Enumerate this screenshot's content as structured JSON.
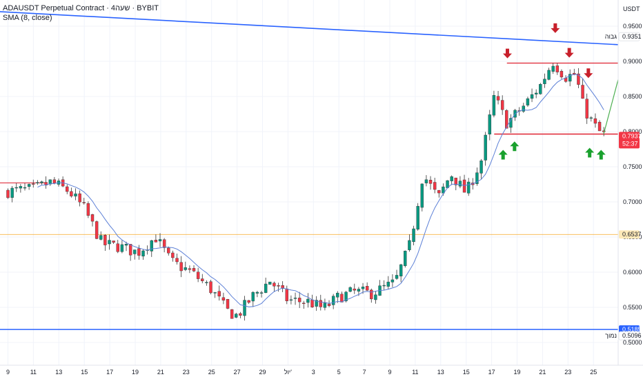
{
  "header": {
    "symbol_line": "ADAUSDT Perpetual Contract · 4שעה · BYBIT",
    "indicator_line": "SMA (8, close)"
  },
  "price_axis": {
    "unit": "USDT",
    "ticks": [
      "0.9500",
      "0.9000",
      "0.8500",
      "0.8000",
      "0.7500",
      "0.7000",
      "0.6500",
      "0.6000",
      "0.5500",
      "0.5000"
    ]
  },
  "time_axis": {
    "ticks": [
      "9",
      "11",
      "13",
      "15",
      "17",
      "19",
      "21",
      "23",
      "25",
      "27",
      "29",
      "יול'",
      "3",
      "5",
      "7",
      "9",
      "11",
      "13",
      "15",
      "17",
      "19",
      "21",
      "23",
      "25"
    ]
  },
  "price_labels": [
    {
      "name": "high",
      "prefix": "גבוה",
      "value": "0.9351",
      "price": 0.9351,
      "style": "outline"
    },
    {
      "name": "current",
      "value": "0.7937",
      "countdown": "52:37",
      "price": 0.7937,
      "style": "red"
    },
    {
      "name": "level",
      "value": "0.6537",
      "price": 0.6537,
      "style": "orange"
    },
    {
      "name": "support",
      "value": "0.5185",
      "price": 0.5185,
      "style": "blue"
    },
    {
      "name": "low",
      "prefix": "נמוך",
      "value": "0.5096",
      "price": 0.5096,
      "style": "outline"
    }
  ],
  "colors": {
    "up": "#089981",
    "down": "#f23645",
    "sma": "#5b7fd6",
    "trendline": "#2962ff",
    "resistance": "#e0303f",
    "level_orange": "#f5a623",
    "arrow_down": "#c8202b",
    "arrow_up": "#1aa12e",
    "projection": "#4caf50"
  },
  "chart_data": {
    "type": "candlestick",
    "symbol": "ADAUSDT Perpetual Contract",
    "interval": "4H",
    "exchange": "BYBIT",
    "indicator": "SMA (8, close)",
    "y_range": [
      0.495,
      0.975
    ],
    "x_range_index": [
      0,
      24
    ],
    "price_path": [
      [
        0,
        0.715
      ],
      [
        1,
        0.718
      ],
      [
        1.7,
        0.728
      ],
      [
        2.4,
        0.715
      ],
      [
        3.0,
        0.69
      ],
      [
        3.7,
        0.64
      ],
      [
        4.3,
        0.637
      ],
      [
        5.1,
        0.628
      ],
      [
        5.8,
        0.65
      ],
      [
        6.4,
        0.615
      ],
      [
        7.2,
        0.6
      ],
      [
        8.0,
        0.575
      ],
      [
        8.6,
        0.545
      ],
      [
        9.0,
        0.538
      ],
      [
        9.6,
        0.565
      ],
      [
        10.3,
        0.588
      ],
      [
        11.0,
        0.56
      ],
      [
        11.8,
        0.558
      ],
      [
        12.4,
        0.548
      ],
      [
        13.0,
        0.565
      ],
      [
        13.6,
        0.572
      ],
      [
        14.3,
        0.57
      ],
      [
        15.2,
        0.585
      ],
      [
        15.8,
        0.64
      ],
      [
        16.3,
        0.74
      ],
      [
        16.9,
        0.705
      ],
      [
        17.4,
        0.74
      ],
      [
        18.0,
        0.712
      ],
      [
        18.6,
        0.76
      ],
      [
        19.1,
        0.85
      ],
      [
        19.6,
        0.812
      ],
      [
        20.3,
        0.838
      ],
      [
        20.9,
        0.865
      ],
      [
        21.4,
        0.9
      ],
      [
        21.9,
        0.878
      ],
      [
        22.3,
        0.882
      ],
      [
        22.6,
        0.835
      ],
      [
        23.0,
        0.81
      ],
      [
        23.3,
        0.797
      ],
      [
        23.5,
        0.794
      ]
    ],
    "sma_lag": 0.35,
    "trendline": {
      "from": [
        -0.5,
        0.971
      ],
      "to": [
        24.2,
        0.9237
      ]
    },
    "horizontal_lines": [
      {
        "name": "resistance",
        "from": 19.6,
        "to": 24.2,
        "price": 0.8975
      },
      {
        "name": "support-zone",
        "from": 19.1,
        "to": 24.2,
        "price": 0.7965
      },
      {
        "name": "level",
        "from": -0.5,
        "to": 24.2,
        "price": 0.6537
      },
      {
        "name": "support",
        "from": -0.5,
        "to": 24.2,
        "price": 0.5185
      },
      {
        "name": "left-high",
        "from": -0.5,
        "to": 1.5,
        "price": 0.727
      }
    ],
    "projection": {
      "from": [
        23.4,
        0.7965
      ],
      "to": [
        24.2,
        0.874
      ]
    },
    "arrows_down": [
      [
        19.62,
        0.918
      ],
      [
        21.5,
        0.954
      ],
      [
        22.05,
        0.919
      ],
      [
        22.8,
        0.89
      ]
    ],
    "arrows_up": [
      [
        19.45,
        0.774
      ],
      [
        19.9,
        0.786
      ],
      [
        22.85,
        0.777
      ],
      [
        23.3,
        0.774
      ]
    ]
  }
}
